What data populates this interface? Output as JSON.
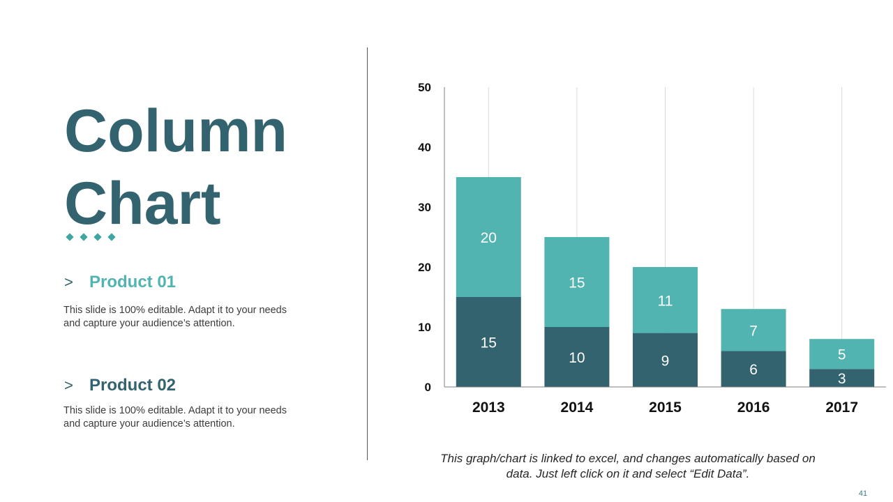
{
  "slide": {
    "title_line1": "Column",
    "title_line2": "Chart",
    "page_number": "41",
    "footnote_line1": "This graph/chart is linked to excel, and changes automatically based on",
    "footnote_line2": "data. Just left click on it and select “Edit Data”."
  },
  "colors": {
    "dark_teal": "#32636f",
    "light_teal": "#52b4b0",
    "diamonds": [
      "#3fa5a2",
      "#3fa5a2",
      "#3fa5a2",
      "#3fa5a2"
    ]
  },
  "products": [
    {
      "chevron": ">",
      "title": "Product 01",
      "color": "#52b4b0",
      "desc_line1": "This slide is 100% editable. Adapt it to your needs",
      "desc_line2": "and capture your audience’s attention."
    },
    {
      "chevron": ">",
      "title": "Product 02",
      "color": "#32636f",
      "desc_line1": "This slide is 100% editable. Adapt it to your needs",
      "desc_line2": "and capture your audience’s attention."
    }
  ],
  "chart_data": {
    "type": "bar",
    "stacked": true,
    "title": "",
    "xlabel": "",
    "ylabel": "",
    "categories": [
      "2013",
      "2014",
      "2015",
      "2016",
      "2017"
    ],
    "series": [
      {
        "name": "Product 02",
        "color": "#32636f",
        "values": [
          15,
          10,
          9,
          6,
          3
        ]
      },
      {
        "name": "Product 01",
        "color": "#52b4b0",
        "values": [
          20,
          15,
          11,
          7,
          5
        ]
      }
    ],
    "ylim": [
      0,
      50
    ],
    "yticks": [
      "0",
      "10",
      "20",
      "30",
      "40",
      "50"
    ],
    "grid": "vertical",
    "legend": "none",
    "data_labels": true
  }
}
